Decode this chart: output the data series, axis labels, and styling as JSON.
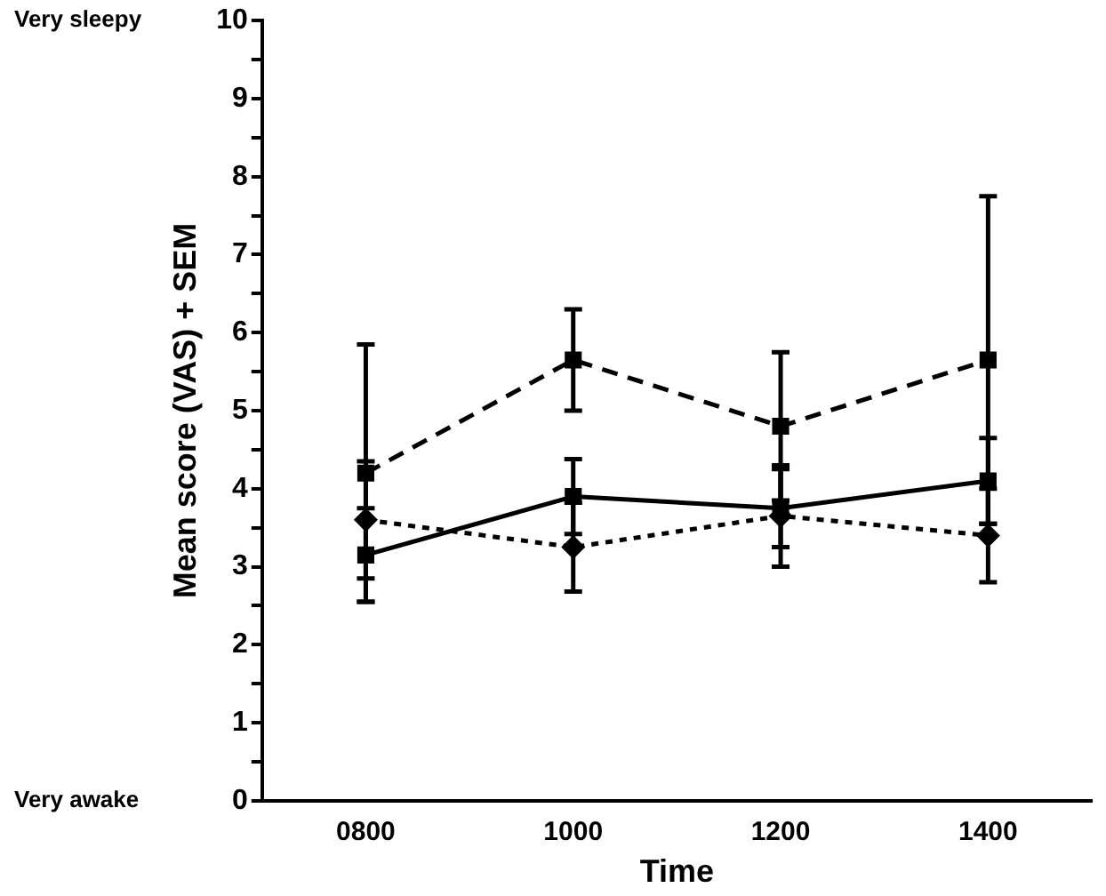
{
  "chart_data": {
    "type": "line",
    "xlabel": "Time",
    "ylabel": "Mean score (VAS) + SEM",
    "categories": [
      "0800",
      "1000",
      "1200",
      "1400"
    ],
    "series": [
      {
        "color": "#000000",
        "line_style": "dashed",
        "marker": "square",
        "values": [
          4.2,
          5.65,
          4.8,
          5.65
        ],
        "errors": [
          1.65,
          0.65,
          0.95,
          2.1
        ]
      },
      {
        "color": "#000000",
        "line_style": "solid",
        "marker": "square",
        "values": [
          3.15,
          3.9,
          3.75,
          4.1
        ],
        "errors": [
          0.6,
          0.48,
          0.5,
          0.55
        ]
      },
      {
        "color": "#000000",
        "line_style": "dotted",
        "marker": "diamond",
        "values": [
          3.6,
          3.25,
          3.65,
          3.4
        ],
        "errors": [
          0.75,
          0.57,
          0.65,
          0.6
        ]
      }
    ],
    "ylim": [
      0,
      10
    ],
    "yticks": [
      0,
      {
        "value": 0.5,
        "label": null
      },
      1,
      {
        "value": 1.5,
        "label": null
      },
      2,
      {
        "value": 2.5,
        "label": null
      },
      3,
      {
        "value": 3.5,
        "label": null
      },
      4,
      {
        "value": 4.5,
        "label": null
      },
      5,
      {
        "value": 5.5,
        "label": null
      },
      6,
      {
        "value": 6.5,
        "label": null
      },
      7,
      {
        "value": 7.5,
        "label": null
      },
      8,
      {
        "value": 8.5,
        "label": null
      },
      9,
      {
        "value": 9.5,
        "label": null
      },
      10
    ],
    "annotations": [
      "Very sleepy",
      "Very awake"
    ],
    "grid": false,
    "legend": false
  }
}
